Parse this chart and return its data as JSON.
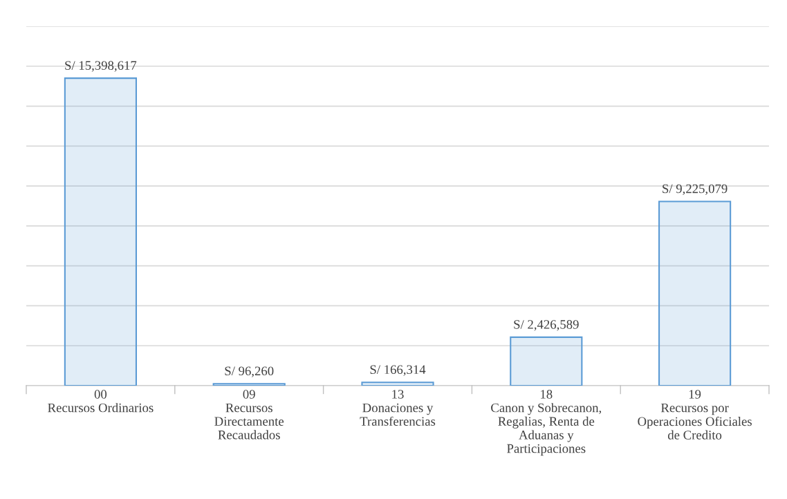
{
  "chart_data": {
    "type": "bar",
    "categories": [
      "00\nRecursos Ordinarios",
      "09\nRecursos\nDirectamente\nRecaudados",
      "13\nDonaciones y\nTransferencias",
      "18\nCanon y Sobrecanon,\nRegalias, Renta de\nAduanas y\nParticipaciones",
      "19\nRecursos por\nOperaciones Oficiales\nde Credito"
    ],
    "values": [
      15398617,
      96260,
      166314,
      2426589,
      9225079
    ],
    "value_labels": [
      "S/ 15,398,617",
      "S/ 96,260",
      "S/ 166,314",
      "S/ 2,426,589",
      "S/ 9,225,079"
    ],
    "color": "#5b9bd5",
    "ylim": [
      0,
      18000000
    ],
    "yticks": [
      {
        "value": 0,
        "label": null
      },
      {
        "value": 2000000,
        "label": null
      },
      {
        "value": 4000000,
        "label": null
      },
      {
        "value": 6000000,
        "label": null
      },
      {
        "value": 8000000,
        "label": null
      },
      {
        "value": 10000000,
        "label": null
      },
      {
        "value": 12000000,
        "label": null
      },
      {
        "value": 14000000,
        "label": null
      },
      {
        "value": 16000000,
        "label": null
      },
      {
        "value": 18000000,
        "label": null
      }
    ],
    "tick_labels": "x",
    "grid": "y",
    "legend": false
  }
}
